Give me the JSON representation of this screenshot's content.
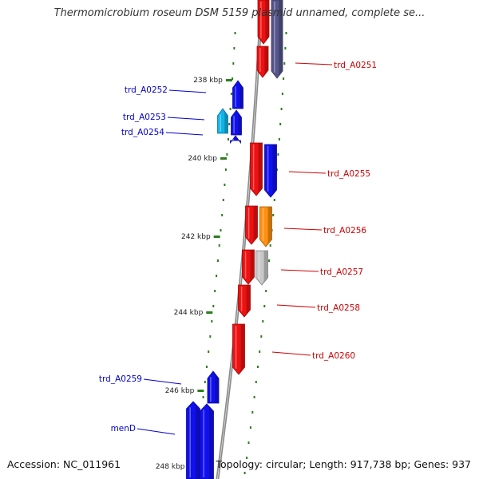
{
  "title": "Thermomicrobium roseum DSM 5159 plasmid unnamed, complete se...",
  "accession_text": "Accession: NC_011961",
  "summary_text": "Topology: circular; Length: 917,738 bp; Genes: 937",
  "colors": {
    "backbone": "#8a8a8a",
    "tick": "#2e7d1e",
    "forward_label": "#0000cc",
    "reverse_label": "#cc0000",
    "blue": "#1010ee",
    "red": "#ee1111",
    "cyan": "#10b4e8",
    "orange": "#ff9010",
    "gray": "#c8c8c8",
    "purple": "#55558a"
  },
  "scale": {
    "unit": "kbp",
    "labels": [
      {
        "kbp": 238,
        "text": "238 kbp"
      },
      {
        "kbp": 240,
        "text": "240 kbp"
      },
      {
        "kbp": 242,
        "text": "242 kbp"
      },
      {
        "kbp": 244,
        "text": "244 kbp"
      },
      {
        "kbp": 246,
        "text": "246 kbp"
      },
      {
        "kbp": 248,
        "text": "248 kbp"
      }
    ]
  },
  "gene_labels": [
    {
      "text": "trd_A0251",
      "strand": "reverse"
    },
    {
      "text": "trd_A0252",
      "strand": "forward"
    },
    {
      "text": "trd_A0253",
      "strand": "forward"
    },
    {
      "text": "trd_A0254",
      "strand": "forward"
    },
    {
      "text": "trd_A0255",
      "strand": "reverse"
    },
    {
      "text": "trd_A0256",
      "strand": "reverse"
    },
    {
      "text": "trd_A0257",
      "strand": "reverse"
    },
    {
      "text": "trd_A0258",
      "strand": "reverse"
    },
    {
      "text": "trd_A0260",
      "strand": "reverse"
    },
    {
      "text": "trd_A0259",
      "strand": "forward"
    },
    {
      "text": "menD",
      "strand": "forward"
    }
  ]
}
